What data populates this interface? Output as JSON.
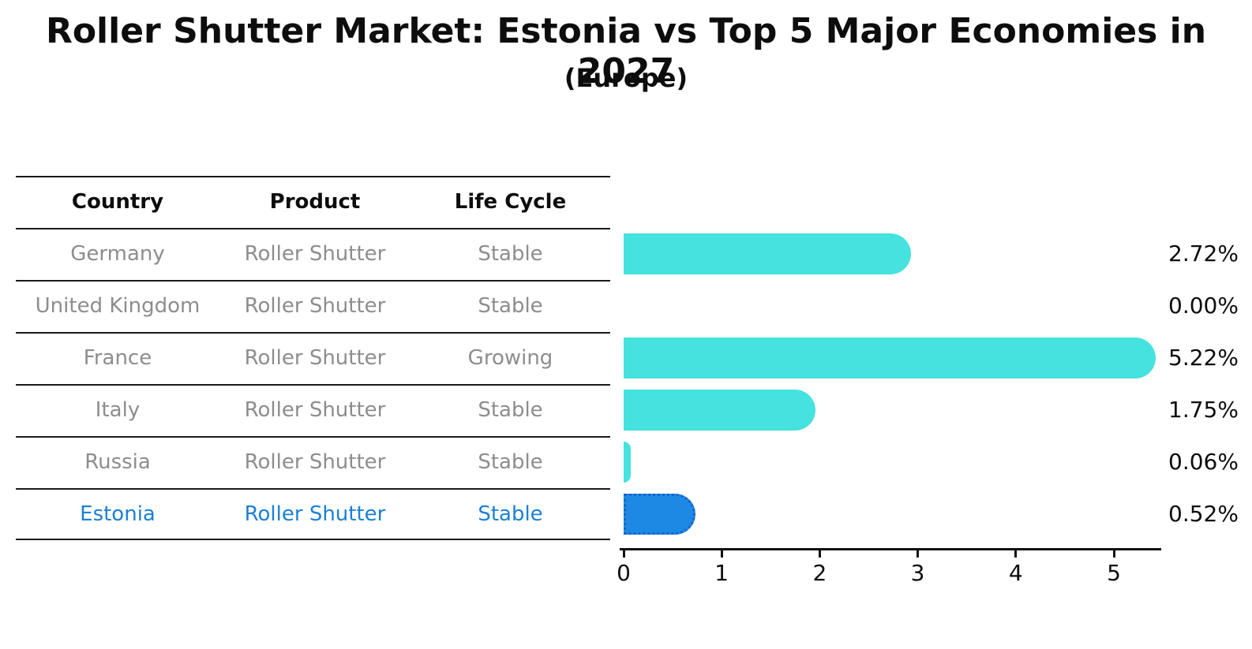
{
  "title": "Roller Shutter Market: Estonia vs Top 5 Major Economies in 2027",
  "subtitle": "(Europe)",
  "table": {
    "headers": [
      "Country",
      "Product",
      "Life Cycle"
    ],
    "rows": [
      {
        "country": "Germany",
        "product": "Roller Shutter",
        "life_cycle": "Stable"
      },
      {
        "country": "United Kingdom",
        "product": "Roller Shutter",
        "life_cycle": "Stable"
      },
      {
        "country": "France",
        "product": "Roller Shutter",
        "life_cycle": "Growing"
      },
      {
        "country": "Italy",
        "product": "Roller Shutter",
        "life_cycle": "Stable"
      },
      {
        "country": "Russia",
        "product": "Roller Shutter",
        "life_cycle": "Stable"
      },
      {
        "country": "Estonia",
        "product": "Roller Shutter",
        "life_cycle": "Stable"
      }
    ]
  },
  "chart_data": {
    "type": "bar",
    "orientation": "horizontal",
    "categories": [
      "Germany",
      "United Kingdom",
      "France",
      "Italy",
      "Russia",
      "Estonia"
    ],
    "values": [
      2.72,
      0.0,
      5.22,
      1.75,
      0.06,
      0.52
    ],
    "value_labels": [
      "2.72%",
      "0.00%",
      "5.22%",
      "1.75%",
      "0.06%",
      "0.52%"
    ],
    "highlight_index": 5,
    "x_ticks": [
      0,
      1,
      2,
      3,
      4,
      5
    ],
    "xlim": [
      0,
      5.5
    ],
    "grid": "off",
    "legend": "none",
    "colors": {
      "default_bar": "#45E2DF",
      "highlight_bar": "#1E88E5",
      "highlight_border": "#1566C8",
      "row_text": "#8D8D8D",
      "highlight_text": "#1C80D4",
      "text": "#0D0D0D"
    }
  }
}
